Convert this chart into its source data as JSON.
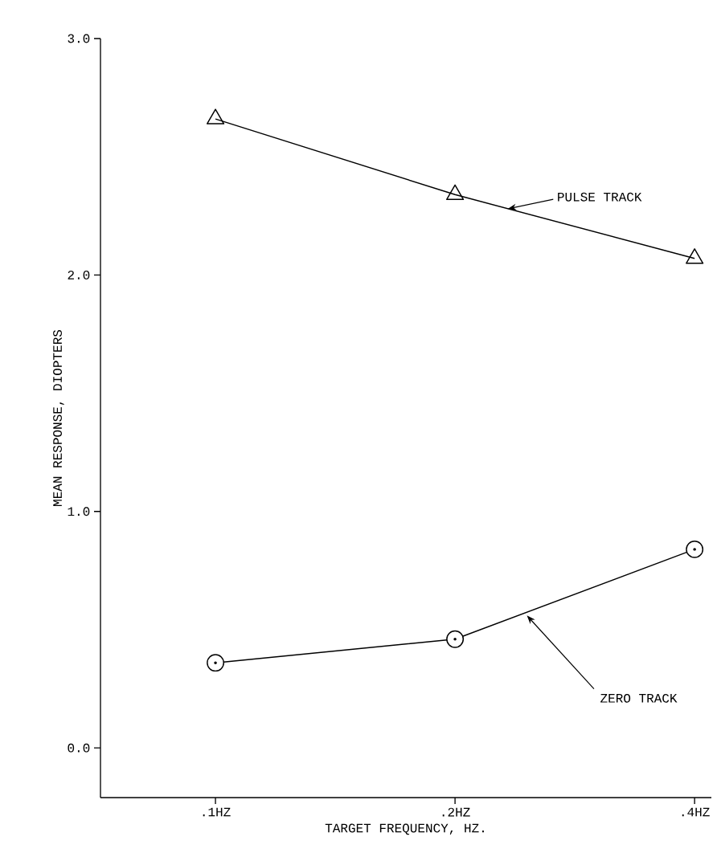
{
  "chart_data": {
    "type": "line",
    "xlabel": "TARGET FREQUENCY, HZ.",
    "ylabel": "MEAN RESPONSE, DIOPTERS",
    "categories": [
      ".1HZ",
      ".2HZ",
      ".4HZ"
    ],
    "series": [
      {
        "name": "PULSE TRACK",
        "color": "#000000",
        "marker": "triangle",
        "values": [
          2.66,
          2.34,
          2.07
        ]
      },
      {
        "name": "ZERO TRACK",
        "color": "#000000",
        "marker": "circle",
        "values": [
          0.36,
          0.46,
          0.84
        ]
      }
    ],
    "ylim": [
      -0.21,
      3.0
    ],
    "yticks": [
      {
        "value": 0,
        "label": "0.0"
      },
      {
        "value": 1,
        "label": "1.0"
      },
      {
        "value": 2,
        "label": "2.0"
      },
      {
        "value": 3,
        "label": "3.0"
      }
    ],
    "grid": false,
    "line_style": "solid"
  }
}
